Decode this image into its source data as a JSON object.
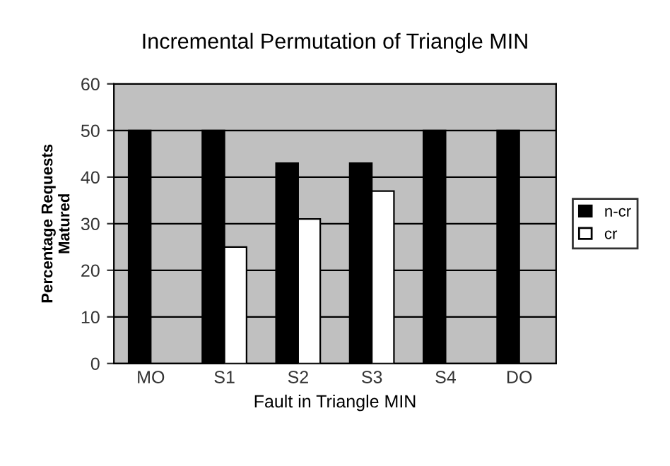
{
  "chart_data": {
    "type": "bar",
    "title": "Incremental Permutation of Triangle MIN",
    "xlabel": "Fault in Triangle MIN",
    "ylabel": "Percentage Requests\nMatured",
    "categories": [
      "MO",
      "S1",
      "S2",
      "S3",
      "S4",
      "DO"
    ],
    "series": [
      {
        "name": "n-cr",
        "color": "#000000",
        "values": [
          50,
          50,
          43,
          43,
          50,
          50
        ]
      },
      {
        "name": "cr",
        "color": "#ffffff",
        "values": [
          null,
          25,
          31,
          37,
          null,
          null
        ]
      }
    ],
    "ylim": [
      0,
      60
    ],
    "yticks": [
      0,
      10,
      20,
      30,
      40,
      50,
      60
    ],
    "grid": "y",
    "legend": "right"
  }
}
